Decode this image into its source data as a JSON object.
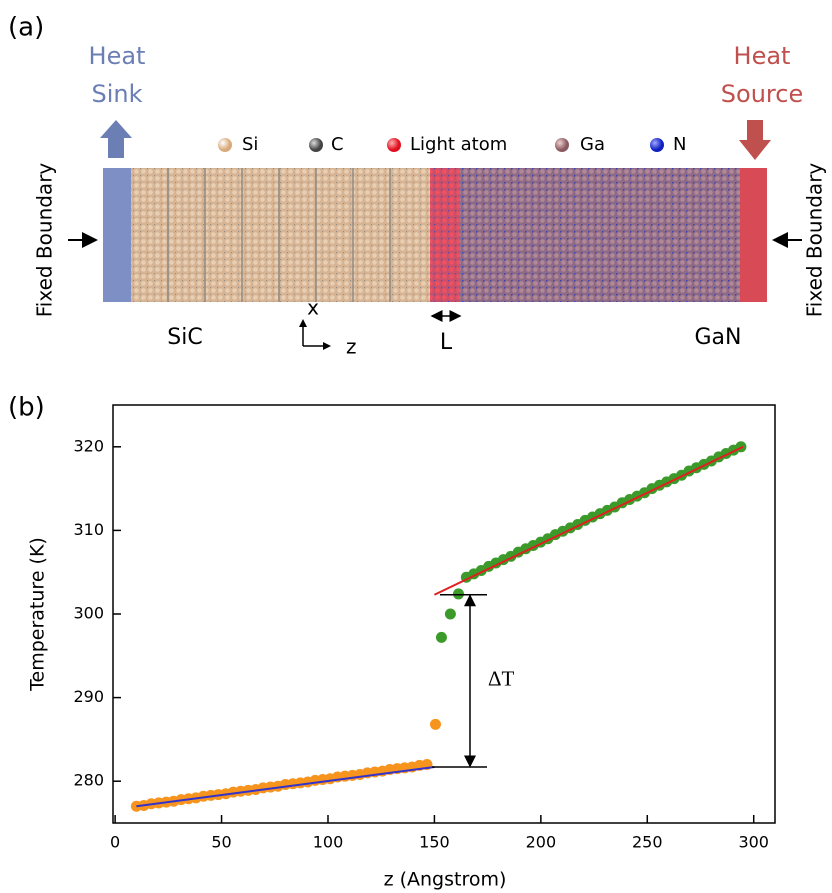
{
  "panel_a": {
    "label": "(a)",
    "heat_sink": [
      "Heat",
      "Sink"
    ],
    "heat_source": [
      "Heat",
      "Source"
    ],
    "legend": [
      "Si",
      "C",
      "Light atom",
      "Ga",
      "N"
    ],
    "fixed_boundary_left": "Fixed Boundary",
    "fixed_boundary_right": "Fixed Boundary",
    "materials": [
      "SiC",
      "GaN"
    ],
    "axes": [
      "x",
      "z"
    ],
    "interface_width": "L"
  },
  "panel_b_label": "(b)",
  "chart_data": {
    "type": "scatter",
    "x_label": "z (Angstrom)",
    "y_label": "Temperature (K)",
    "xlim": [
      -1,
      310
    ],
    "xticks": [
      0,
      50,
      100,
      150,
      200,
      250,
      300
    ],
    "ylim": [
      275,
      325
    ],
    "yticks": [
      280,
      290,
      300,
      310,
      320
    ],
    "series": [
      {
        "color": "#f7941d",
        "x": [
          10,
          13.5,
          17,
          20.5,
          24,
          27.5,
          31,
          34.5,
          38,
          41.5,
          45,
          48.5,
          52,
          55.5,
          59,
          62.5,
          66,
          69.5,
          73,
          76.5,
          80,
          83.5,
          87,
          90.5,
          94,
          97.5,
          101,
          104.5,
          108,
          111.5,
          115,
          118.5,
          122,
          125.5,
          129,
          132.5,
          136,
          139.5,
          143,
          146.5,
          150.5
        ],
        "values": [
          277.0,
          277.1,
          277.3,
          277.4,
          277.5,
          277.6,
          277.8,
          277.9,
          278.0,
          278.2,
          278.3,
          278.4,
          278.5,
          278.7,
          278.8,
          278.9,
          279.0,
          279.2,
          279.3,
          279.4,
          279.6,
          279.7,
          279.8,
          279.9,
          280.1,
          280.2,
          280.3,
          280.5,
          280.6,
          280.7,
          280.8,
          281.0,
          281.1,
          281.2,
          281.4,
          281.5,
          281.6,
          281.7,
          281.9,
          282.0,
          286.8
        ]
      },
      {
        "color": "#3c9a2a",
        "x": [
          153.3,
          157.5,
          161.3,
          165,
          168.5,
          172,
          175.5,
          178.9,
          182.4,
          185.9,
          189.4,
          192.9,
          196.4,
          199.9,
          203.3,
          206.8,
          210.3,
          213.8,
          217.3,
          220.8,
          224.3,
          227.8,
          231.2,
          234.7,
          238.2,
          241.7,
          245.2,
          248.7,
          252.2,
          255.7,
          259.1,
          262.6,
          266.1,
          269.6,
          273.1,
          276.6,
          280.1,
          283.6,
          287,
          290.5,
          294
        ],
        "values": [
          297.2,
          300.0,
          302.4,
          304.4,
          304.8,
          305.2,
          305.7,
          306.1,
          306.5,
          306.9,
          307.4,
          307.8,
          308.2,
          308.6,
          309.0,
          309.5,
          309.9,
          310.3,
          310.7,
          311.2,
          311.6,
          312.0,
          312.4,
          312.8,
          313.3,
          313.7,
          314.1,
          314.5,
          315.0,
          315.4,
          315.8,
          316.2,
          316.6,
          317.1,
          317.5,
          317.9,
          318.3,
          318.8,
          319.2,
          319.6,
          320.0
        ]
      }
    ],
    "fits": [
      {
        "color": "#3333cc",
        "x": [
          10,
          150
        ],
        "y": [
          277.0,
          281.7
        ]
      },
      {
        "color": "#e02020",
        "x": [
          150,
          295
        ],
        "y": [
          302.3,
          320.0
        ]
      }
    ],
    "delta_t": {
      "label": "ΔT",
      "from": 281.7,
      "to": 302.3
    }
  }
}
